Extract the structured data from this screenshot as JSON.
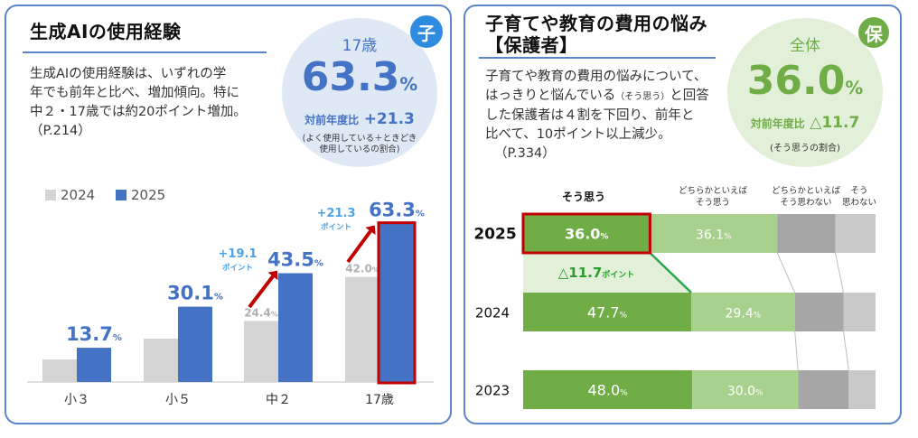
{
  "left": {
    "title": "生成AIの使用経験",
    "badge": "子",
    "body": "生成AIの使用経験は、いずれの学\n年でも前年と比べ、増加傾向。特に\n中２・17歳では約20ポイント増加。\n（P.214）",
    "bubble": {
      "label": "17歳",
      "value": "63.3",
      "unit": "%",
      "diff_label": "対前年度比",
      "diff_value": "+21.3",
      "note_line1": "(よく使用している＋ときどき",
      "note_line2": "使用しているの割合)"
    },
    "colors": {
      "y2024": "#d4d4d4",
      "y2025": "#4472c4",
      "accent": "#4472c4",
      "highlight": "#c00000",
      "diff": "#4da3e6",
      "arrow": "#c00000"
    }
  },
  "right": {
    "title_line1": "子育てや教育の費用の悩み",
    "title_line2": "【保護者】",
    "badge": "保",
    "body": "子育てや教育の費用の悩みについて、\nはっきりと悩んでいる\n（そう思う）と回答\nした保護者は４割を下回り、前年と\n比べて、10ポイント以上減少。\n（P.334）",
    "body_line1": "子育てや教育の費用の悩みについて、",
    "body_line2a": "はっきりと悩んでいる",
    "body_line2b": "（そう思う）",
    "body_line2c": "と回答",
    "body_line3": "した保護者は４割を下回り、前年と",
    "body_line4": "比べて、10ポイント以上減少。",
    "body_line5": "（P.334）",
    "bubble": {
      "label": "全体",
      "value": "36.0",
      "unit": "%",
      "diff_label": "対前年度比",
      "diff_value": "△11.7",
      "note": "(そう思うの割合)"
    },
    "colors": {
      "c1": "#70ad47",
      "c2": "#a9d18e",
      "c3": "#a6a6a6",
      "c4": "#c9c9c9",
      "accent": "#70ad47",
      "highlight": "#c00000",
      "diff": "#2a9d2a"
    }
  },
  "chart_data": [
    {
      "type": "bar",
      "categories": [
        "小３",
        "小５",
        "中２",
        "17歳"
      ],
      "series": [
        {
          "name": "2024",
          "values": [
            null,
            null,
            24.4,
            42.0
          ]
        },
        {
          "name": "2025",
          "values": [
            13.7,
            30.1,
            43.5,
            63.3
          ]
        }
      ],
      "labels_2024": [
        "",
        "",
        "24.4",
        "42.0"
      ],
      "labels_2025": [
        "13.7",
        "30.1",
        "43.5",
        "63.3"
      ],
      "label_unit": "%",
      "diff_annotations": [
        {
          "category": "中２",
          "value": "+19.1",
          "unit": "ポイント"
        },
        {
          "category": "17歳",
          "value": "+21.3",
          "unit": "ポイント"
        }
      ],
      "ylim": [
        0,
        70
      ],
      "legend_position": "top-left",
      "grid": false
    },
    {
      "type": "bar",
      "orientation": "horizontal",
      "stacked": true,
      "categories": [
        "2025",
        "2024",
        "2023"
      ],
      "segment_names": [
        "そう思う",
        "どちらかといえば\nそう思う",
        "どちらかといえば\nそう思わない",
        "そう\n思わない"
      ],
      "segment_headers": [
        {
          "line1": "そう思う",
          "line2": ""
        },
        {
          "line1": "どちらかといえば",
          "line2": "そう思う"
        },
        {
          "line1": "どちらかといえば",
          "line2": "そう思わない"
        },
        {
          "line1": "そう",
          "line2": "思わない"
        }
      ],
      "series": [
        {
          "name": "そう思う",
          "values": [
            36.0,
            47.7,
            48.0
          ]
        },
        {
          "name": "どちらかといえば\nそう思う",
          "values": [
            36.1,
            29.4,
            30.0
          ]
        },
        {
          "name": "どちらかといえば\nそう思わない",
          "values": [
            16.5,
            13.8,
            14.4
          ]
        },
        {
          "name": "そう\n思わない",
          "values": [
            11.4,
            9.1,
            7.6
          ]
        }
      ],
      "labels": [
        [
          "36.0",
          "36.1"
        ],
        [
          "47.7",
          "29.4"
        ],
        [
          "48.0",
          "30.0"
        ]
      ],
      "label_unit": "%",
      "diff_annotation": {
        "value": "△11.7",
        "unit": "ポイント"
      },
      "xlim": [
        0,
        100
      ],
      "grid": false
    }
  ]
}
